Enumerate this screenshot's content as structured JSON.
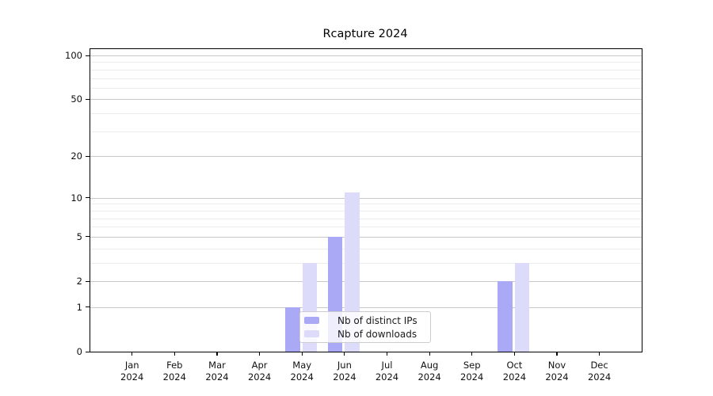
{
  "title": "Rcapture 2024",
  "chart_data": {
    "type": "bar",
    "title": "Rcapture 2024",
    "subtitle": "",
    "y_scale": "log1p",
    "grid": "horizontal",
    "x_categories": [
      "Jan",
      "Feb",
      "Mar",
      "Apr",
      "May",
      "Jun",
      "Jul",
      "Aug",
      "Sep",
      "Oct",
      "Nov",
      "Dec"
    ],
    "x_year": "2024",
    "series": [
      {
        "name": "Nb of distinct IPs",
        "color": "#a9a9f6",
        "values": [
          0,
          0,
          0,
          0,
          1,
          5,
          0,
          0,
          0,
          2,
          0,
          0
        ]
      },
      {
        "name": "Nb of downloads",
        "color": "#dcdcfa",
        "values": [
          0,
          0,
          0,
          0,
          3,
          11,
          0,
          0,
          0,
          3,
          0,
          0
        ]
      }
    ],
    "y_tick_labels": [
      0,
      1,
      2,
      5,
      10,
      20,
      50,
      100
    ],
    "y_minor_gridlines": [
      1,
      2,
      3,
      4,
      5,
      6,
      7,
      8,
      9,
      10,
      20,
      30,
      40,
      50,
      60,
      70,
      80,
      90,
      100
    ],
    "y_max": 100,
    "xlabel": "",
    "ylabel": "",
    "legend_position": "bottom-center-inside"
  },
  "legend": {
    "items": [
      {
        "label": "Nb of distinct IPs",
        "color": "#a9a9f6"
      },
      {
        "label": "Nb of downloads",
        "color": "#dcdcfa"
      }
    ]
  },
  "colors": {
    "background": "#ffffff",
    "axis": "#000000",
    "major_grid": "#c8c8c8",
    "minor_grid": "#ececec",
    "title_text": "#000000",
    "tick_text": "#111111"
  }
}
